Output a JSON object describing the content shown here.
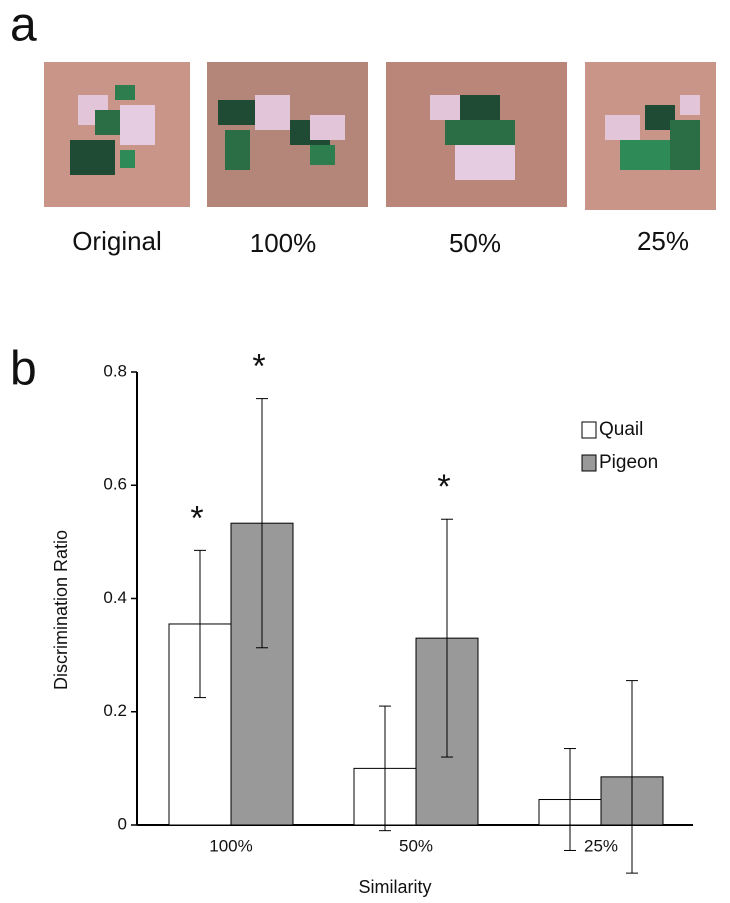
{
  "panel_a": {
    "label": "a",
    "captions": [
      "Original",
      "100%",
      "50%",
      "25%"
    ]
  },
  "chart_data": {
    "type": "bar",
    "panel_label": "b",
    "x_label": "Similarity",
    "y_label": "Discrimination Ratio",
    "categories": [
      "100%",
      "50%",
      "25%"
    ],
    "series": [
      {
        "name": "Quail",
        "color": "#ffffff",
        "values": [
          0.355,
          0.1,
          0.045
        ],
        "errors": [
          0.13,
          0.11,
          0.09
        ],
        "markers": [
          "*",
          null,
          null
        ]
      },
      {
        "name": "Pigeon",
        "color": "#999999",
        "values": [
          0.533,
          0.33,
          0.085
        ],
        "errors": [
          0.22,
          0.21,
          0.17
        ],
        "markers": [
          "*",
          "*",
          null
        ]
      }
    ],
    "ylim": [
      0,
      0.8
    ],
    "yticks": [
      0,
      0.2,
      0.4,
      0.6,
      0.8
    ],
    "legend": "upper right"
  }
}
